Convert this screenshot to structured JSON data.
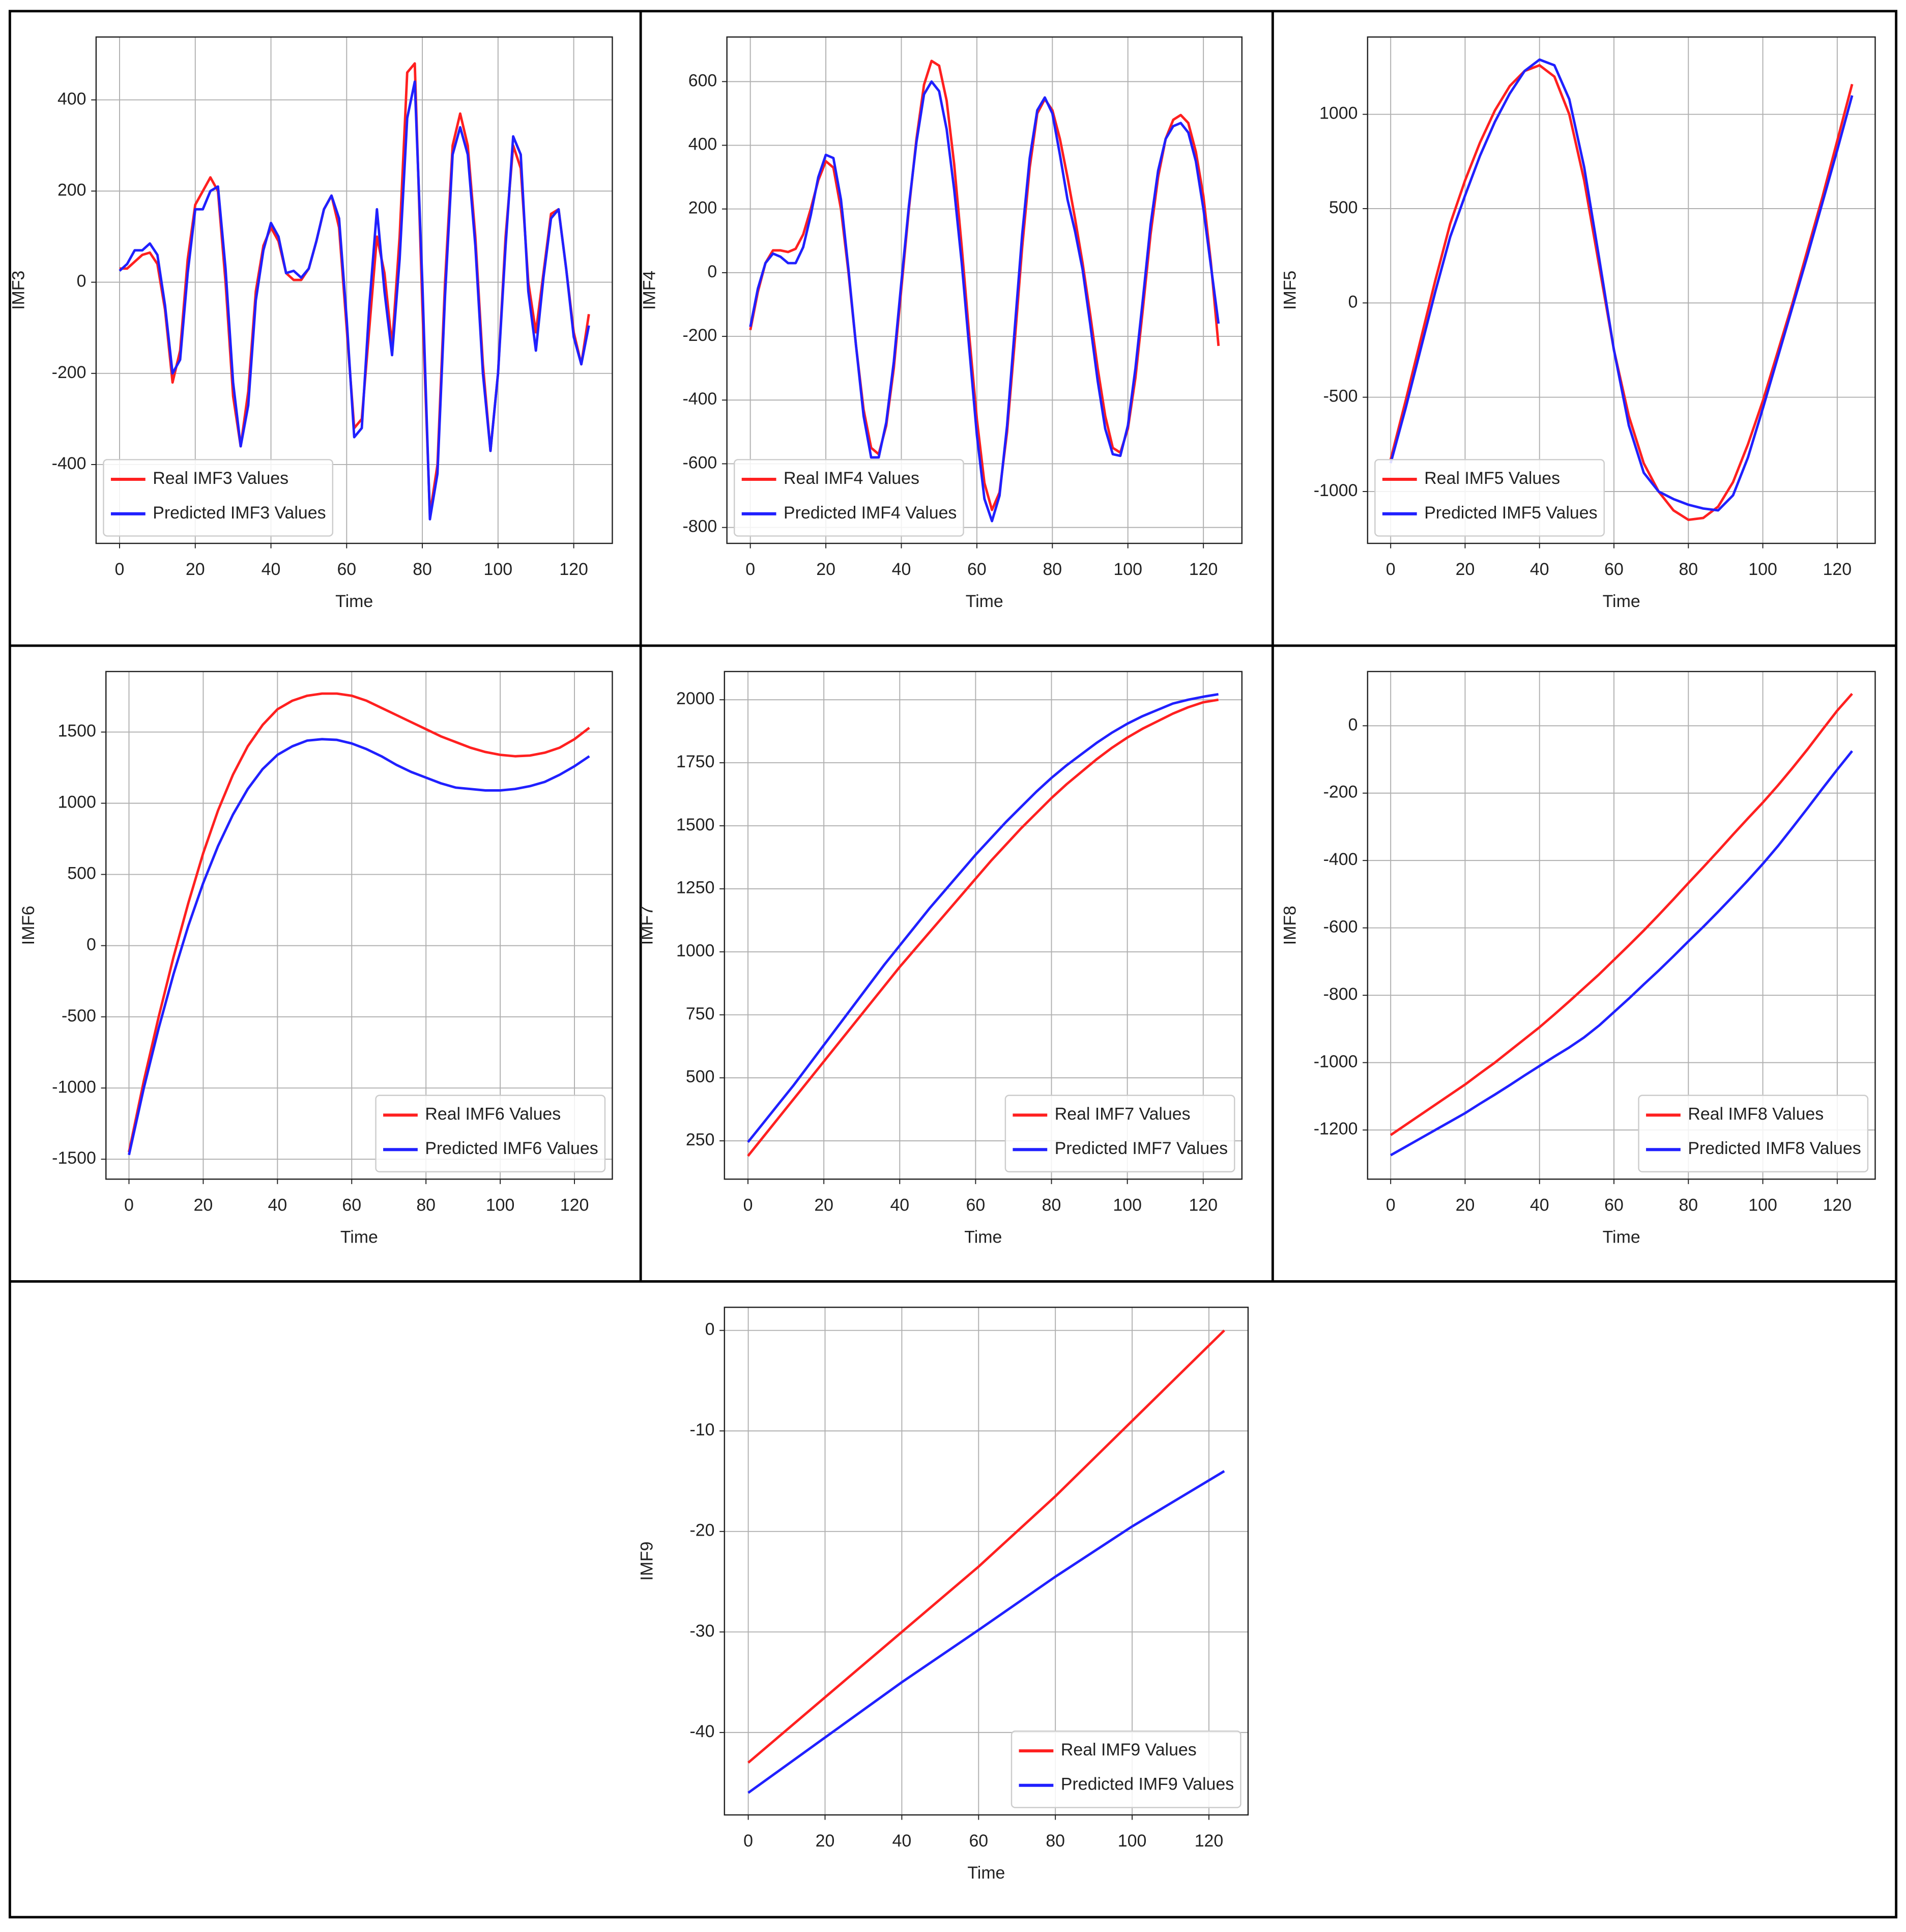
{
  "chart_data": [
    {
      "type": "line",
      "y_label": "IMF3",
      "x_label": "Time",
      "legend": "lower left",
      "grid": true,
      "xlim": [
        -6.2,
        130.2
      ],
      "xticks": [
        0,
        20,
        40,
        60,
        80,
        100,
        120
      ],
      "ylim": [
        -573,
        538
      ],
      "yticks": [
        -400,
        -200,
        0,
        200,
        400
      ],
      "x": [
        0,
        2,
        4,
        6,
        8,
        10,
        12,
        14,
        16,
        18,
        20,
        22,
        24,
        26,
        28,
        30,
        32,
        34,
        36,
        38,
        40,
        42,
        44,
        46,
        48,
        50,
        52,
        54,
        56,
        58,
        60,
        62,
        64,
        66,
        68,
        70,
        72,
        74,
        76,
        78,
        80,
        82,
        84,
        86,
        88,
        90,
        92,
        94,
        96,
        98,
        100,
        102,
        104,
        106,
        108,
        110,
        112,
        114,
        116,
        118,
        120,
        122,
        124
      ],
      "series": [
        {
          "name": "Real IMF3 Values",
          "color": "#ff2020",
          "values": [
            30,
            30,
            45,
            60,
            65,
            40,
            -60,
            -220,
            -150,
            50,
            170,
            200,
            230,
            200,
            0,
            -250,
            -360,
            -240,
            -20,
            80,
            120,
            90,
            20,
            5,
            5,
            30,
            90,
            160,
            190,
            120,
            -100,
            -320,
            -300,
            -100,
            100,
            20,
            -140,
            100,
            460,
            480,
            -50,
            -510,
            -400,
            0,
            300,
            370,
            300,
            100,
            -180,
            -370,
            -200,
            100,
            300,
            250,
            0,
            -110,
            20,
            150,
            160,
            30,
            -110,
            -180,
            -70
          ]
        },
        {
          "name": "Predicted IMF3 Values",
          "color": "#2020ff",
          "values": [
            25,
            40,
            70,
            70,
            85,
            60,
            -50,
            -200,
            -170,
            20,
            160,
            160,
            200,
            210,
            30,
            -220,
            -360,
            -270,
            -40,
            70,
            130,
            100,
            20,
            25,
            10,
            30,
            90,
            160,
            190,
            140,
            -80,
            -340,
            -320,
            -50,
            160,
            -20,
            -160,
            50,
            360,
            440,
            0,
            -520,
            -420,
            -30,
            280,
            340,
            280,
            80,
            -200,
            -370,
            -200,
            80,
            320,
            280,
            -20,
            -150,
            10,
            140,
            160,
            30,
            -120,
            -180,
            -95
          ]
        }
      ]
    },
    {
      "type": "line",
      "y_label": "IMF4",
      "x_label": "Time",
      "legend": "lower left",
      "grid": true,
      "xlim": [
        -6.2,
        130.2
      ],
      "xticks": [
        0,
        20,
        40,
        60,
        80,
        100,
        120
      ],
      "ylim": [
        -850,
        740
      ],
      "yticks": [
        -800,
        -600,
        -400,
        -200,
        0,
        200,
        400,
        600
      ],
      "x": [
        0,
        2,
        4,
        6,
        8,
        10,
        12,
        14,
        16,
        18,
        20,
        22,
        24,
        26,
        28,
        30,
        32,
        34,
        36,
        38,
        40,
        42,
        44,
        46,
        48,
        50,
        52,
        54,
        56,
        58,
        60,
        62,
        64,
        66,
        68,
        70,
        72,
        74,
        76,
        78,
        80,
        82,
        84,
        86,
        88,
        90,
        92,
        94,
        96,
        98,
        100,
        102,
        104,
        106,
        108,
        110,
        112,
        114,
        116,
        118,
        120,
        122,
        124
      ],
      "series": [
        {
          "name": "Real IMF4 Values",
          "color": "#ff2020",
          "values": [
            -180,
            -60,
            30,
            70,
            70,
            65,
            75,
            120,
            200,
            290,
            350,
            330,
            200,
            0,
            -230,
            -430,
            -550,
            -570,
            -480,
            -300,
            -50,
            200,
            420,
            590,
            665,
            650,
            540,
            340,
            80,
            -200,
            -460,
            -660,
            -745,
            -690,
            -500,
            -220,
            80,
            330,
            500,
            545,
            510,
            420,
            300,
            170,
            30,
            -130,
            -300,
            -450,
            -550,
            -565,
            -490,
            -330,
            -110,
            120,
            300,
            420,
            480,
            495,
            470,
            380,
            240,
            30,
            -230
          ]
        },
        {
          "name": "Predicted IMF4 Values",
          "color": "#2020ff",
          "values": [
            -170,
            -50,
            30,
            60,
            50,
            30,
            30,
            80,
            180,
            300,
            370,
            360,
            230,
            10,
            -230,
            -450,
            -580,
            -580,
            -470,
            -280,
            -30,
            210,
            410,
            560,
            600,
            570,
            450,
            260,
            30,
            -240,
            -510,
            -710,
            -780,
            -700,
            -480,
            -180,
            120,
            360,
            510,
            550,
            500,
            370,
            230,
            130,
            10,
            -160,
            -340,
            -490,
            -570,
            -575,
            -480,
            -300,
            -80,
            150,
            320,
            420,
            460,
            470,
            440,
            350,
            200,
            20,
            -160
          ]
        }
      ]
    },
    {
      "type": "line",
      "y_label": "IMF5",
      "x_label": "Time",
      "legend": "lower left",
      "grid": true,
      "xlim": [
        -6.2,
        130.2
      ],
      "xticks": [
        0,
        20,
        40,
        60,
        80,
        100,
        120
      ],
      "ylim": [
        -1275,
        1410
      ],
      "yticks": [
        -1000,
        -500,
        0,
        500,
        1000
      ],
      "x": [
        0,
        4,
        8,
        12,
        16,
        20,
        24,
        28,
        32,
        36,
        40,
        44,
        48,
        52,
        56,
        60,
        64,
        68,
        72,
        76,
        80,
        84,
        88,
        92,
        96,
        100,
        104,
        108,
        112,
        116,
        120,
        124
      ],
      "series": [
        {
          "name": "Real IMF5 Values",
          "color": "#ff2020",
          "values": [
            -830,
            -520,
            -200,
            120,
            420,
            650,
            850,
            1020,
            1150,
            1230,
            1260,
            1200,
            1000,
            650,
            200,
            -250,
            -600,
            -850,
            -1000,
            -1100,
            -1150,
            -1140,
            -1080,
            -950,
            -750,
            -520,
            -260,
            0,
            280,
            560,
            860,
            1160
          ]
        },
        {
          "name": "Predicted IMF5 Values",
          "color": "#2020ff",
          "values": [
            -850,
            -560,
            -250,
            60,
            350,
            570,
            780,
            960,
            1110,
            1230,
            1290,
            1260,
            1080,
            720,
            240,
            -250,
            -650,
            -900,
            -1000,
            -1040,
            -1070,
            -1090,
            -1100,
            -1020,
            -820,
            -560,
            -290,
            -20,
            250,
            530,
            810,
            1100
          ]
        }
      ]
    },
    {
      "type": "line",
      "y_label": "IMF6",
      "x_label": "Time",
      "legend": "lower right",
      "grid": true,
      "xlim": [
        -6.2,
        130.2
      ],
      "xticks": [
        0,
        20,
        40,
        60,
        80,
        100,
        120
      ],
      "ylim": [
        -1640,
        1925
      ],
      "yticks": [
        -1500,
        -1000,
        -500,
        0,
        500,
        1000,
        1500
      ],
      "x": [
        0,
        4,
        8,
        12,
        16,
        20,
        24,
        28,
        32,
        36,
        40,
        44,
        48,
        52,
        56,
        60,
        64,
        68,
        72,
        76,
        80,
        84,
        88,
        92,
        96,
        100,
        104,
        108,
        112,
        116,
        120,
        124
      ],
      "series": [
        {
          "name": "Real IMF6 Values",
          "color": "#ff2020",
          "values": [
            -1450,
            -950,
            -500,
            -80,
            300,
            650,
            950,
            1200,
            1400,
            1550,
            1660,
            1720,
            1755,
            1770,
            1770,
            1755,
            1720,
            1670,
            1620,
            1570,
            1520,
            1470,
            1430,
            1390,
            1360,
            1340,
            1330,
            1335,
            1355,
            1390,
            1450,
            1530
          ]
        },
        {
          "name": "Predicted IMF6 Values",
          "color": "#2020ff",
          "values": [
            -1470,
            -1000,
            -580,
            -200,
            140,
            440,
            700,
            920,
            1100,
            1240,
            1340,
            1400,
            1440,
            1450,
            1445,
            1420,
            1380,
            1330,
            1270,
            1220,
            1180,
            1140,
            1110,
            1100,
            1090,
            1090,
            1100,
            1120,
            1150,
            1200,
            1260,
            1330
          ]
        }
      ]
    },
    {
      "type": "line",
      "y_label": "IMF7",
      "x_label": "Time",
      "legend": "lower right",
      "grid": true,
      "xlim": [
        -6.2,
        130.2
      ],
      "xticks": [
        0,
        20,
        40,
        60,
        80,
        100,
        120
      ],
      "ylim": [
        98,
        2112
      ],
      "yticks": [
        250,
        500,
        750,
        1000,
        1250,
        1500,
        1750,
        2000
      ],
      "x": [
        0,
        4,
        8,
        12,
        16,
        20,
        24,
        28,
        32,
        36,
        40,
        44,
        48,
        52,
        56,
        60,
        64,
        68,
        72,
        76,
        80,
        84,
        88,
        92,
        96,
        100,
        104,
        108,
        112,
        116,
        120,
        124
      ],
      "series": [
        {
          "name": "Real IMF7 Values",
          "color": "#ff2020",
          "values": [
            190,
            265,
            340,
            415,
            490,
            565,
            640,
            715,
            790,
            865,
            940,
            1010,
            1080,
            1150,
            1220,
            1290,
            1360,
            1425,
            1490,
            1550,
            1610,
            1665,
            1715,
            1765,
            1810,
            1850,
            1885,
            1915,
            1945,
            1970,
            1990,
            2000
          ]
        },
        {
          "name": "Predicted IMF7 Values",
          "color": "#2020ff",
          "values": [
            245,
            320,
            395,
            470,
            550,
            630,
            710,
            790,
            870,
            950,
            1025,
            1100,
            1175,
            1245,
            1315,
            1385,
            1450,
            1515,
            1575,
            1635,
            1690,
            1740,
            1785,
            1830,
            1870,
            1905,
            1935,
            1960,
            1985,
            2000,
            2012,
            2022
          ]
        }
      ]
    },
    {
      "type": "line",
      "y_label": "IMF8",
      "x_label": "Time",
      "legend": "lower right",
      "grid": true,
      "xlim": [
        -6.2,
        130.2
      ],
      "xticks": [
        0,
        20,
        40,
        60,
        80,
        100,
        120
      ],
      "ylim": [
        -1346,
        161
      ],
      "yticks": [
        -1200,
        -1000,
        -800,
        -600,
        -400,
        -200,
        0
      ],
      "x": [
        0,
        4,
        8,
        12,
        16,
        20,
        24,
        28,
        32,
        36,
        40,
        44,
        48,
        52,
        56,
        60,
        64,
        68,
        72,
        76,
        80,
        84,
        88,
        92,
        96,
        100,
        104,
        108,
        112,
        116,
        120,
        124
      ],
      "series": [
        {
          "name": "Real IMF8 Values",
          "color": "#ff2020",
          "values": [
            -1215,
            -1185,
            -1155,
            -1125,
            -1095,
            -1065,
            -1032,
            -1000,
            -965,
            -930,
            -895,
            -857,
            -818,
            -778,
            -738,
            -695,
            -652,
            -608,
            -562,
            -515,
            -467,
            -420,
            -372,
            -323,
            -275,
            -228,
            -178,
            -125,
            -70,
            -12,
            45,
            95
          ]
        },
        {
          "name": "Predicted IMF8 Values",
          "color": "#2020ff",
          "values": [
            -1275,
            -1250,
            -1225,
            -1200,
            -1175,
            -1150,
            -1122,
            -1095,
            -1067,
            -1038,
            -1010,
            -982,
            -955,
            -925,
            -890,
            -850,
            -810,
            -768,
            -727,
            -684,
            -640,
            -597,
            -552,
            -506,
            -459,
            -410,
            -358,
            -302,
            -245,
            -187,
            -130,
            -75
          ]
        }
      ]
    },
    {
      "type": "line",
      "y_label": "IMF9",
      "x_label": "Time",
      "legend": "lower right",
      "grid": true,
      "xlim": [
        -6.2,
        130.2
      ],
      "xticks": [
        0,
        20,
        40,
        60,
        80,
        100,
        120
      ],
      "ylim": [
        -48.2,
        2.3
      ],
      "yticks": [
        -40,
        -30,
        -20,
        -10,
        0
      ],
      "x": [
        0,
        20,
        40,
        60,
        80,
        100,
        124
      ],
      "series": [
        {
          "name": "Real IMF9 Values",
          "color": "#ff2020",
          "values": [
            -43,
            -36.5,
            -30,
            -23.5,
            -16.5,
            -9,
            0
          ]
        },
        {
          "name": "Predicted IMF9 Values",
          "color": "#2020ff",
          "values": [
            -46,
            -40.5,
            -35,
            -29.8,
            -24.5,
            -19.5,
            -14
          ]
        }
      ]
    }
  ]
}
